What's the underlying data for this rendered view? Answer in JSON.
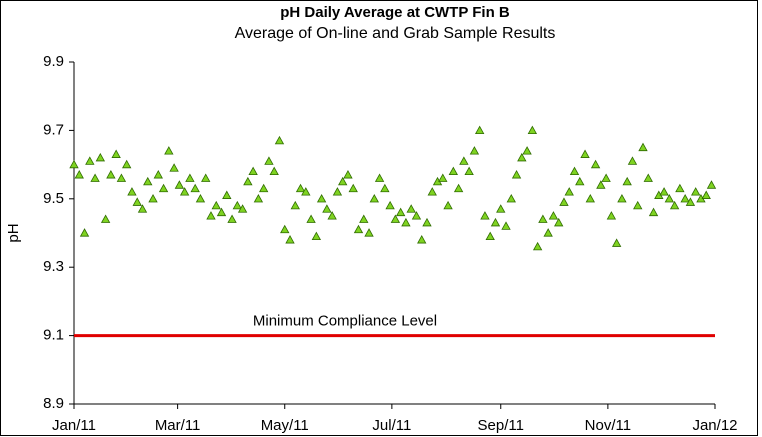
{
  "chart_data": {
    "type": "scatter",
    "title": "pH Daily Average at CWTP Fin B",
    "subtitle": "Average of On-line and Grab Sample Results",
    "y_label": "pH",
    "color": "#7fd321",
    "edge_color": "#2f6b00",
    "xlim": [
      0,
      365
    ],
    "xticks": [
      {
        "value": 0,
        "label": "Jan/11"
      },
      {
        "value": 59,
        "label": "Mar/11"
      },
      {
        "value": 120,
        "label": "May/11"
      },
      {
        "value": 181,
        "label": "Jul/11"
      },
      {
        "value": 243,
        "label": "Sep/11"
      },
      {
        "value": 304,
        "label": "Nov/11"
      },
      {
        "value": 365,
        "label": "Jan/12"
      }
    ],
    "ylim": [
      8.9,
      9.9
    ],
    "yticks": [
      8.9,
      9.1,
      9.3,
      9.5,
      9.7,
      9.9
    ],
    "reference_line": {
      "value": 9.1,
      "label": "Minimum Compliance Level",
      "color": "#e00000"
    },
    "x": [
      0,
      3,
      6,
      9,
      12,
      15,
      18,
      21,
      24,
      27,
      30,
      33,
      36,
      39,
      42,
      45,
      48,
      51,
      54,
      57,
      60,
      63,
      66,
      69,
      72,
      75,
      78,
      81,
      84,
      87,
      90,
      93,
      96,
      99,
      102,
      105,
      108,
      111,
      114,
      117,
      120,
      123,
      126,
      129,
      132,
      135,
      138,
      141,
      144,
      147,
      150,
      153,
      156,
      159,
      162,
      165,
      168,
      171,
      174,
      177,
      180,
      183,
      186,
      189,
      192,
      195,
      198,
      201,
      204,
      207,
      210,
      213,
      216,
      219,
      222,
      225,
      228,
      231,
      234,
      237,
      240,
      243,
      246,
      249,
      252,
      255,
      258,
      261,
      264,
      267,
      270,
      273,
      276,
      279,
      282,
      285,
      288,
      291,
      294,
      297,
      300,
      303,
      306,
      309,
      312,
      315,
      318,
      321,
      324,
      327,
      330,
      333,
      336,
      339,
      342,
      345,
      348,
      351,
      354,
      357,
      360,
      363
    ],
    "values": [
      9.6,
      9.57,
      9.4,
      9.61,
      9.56,
      9.62,
      9.44,
      9.57,
      9.63,
      9.56,
      9.6,
      9.52,
      9.49,
      9.47,
      9.55,
      9.5,
      9.57,
      9.53,
      9.64,
      9.59,
      9.54,
      9.52,
      9.56,
      9.53,
      9.5,
      9.56,
      9.45,
      9.48,
      9.46,
      9.51,
      9.44,
      9.48,
      9.47,
      9.55,
      9.58,
      9.5,
      9.53,
      9.61,
      9.58,
      9.67,
      9.41,
      9.38,
      9.48,
      9.53,
      9.52,
      9.44,
      9.39,
      9.5,
      9.47,
      9.45,
      9.52,
      9.55,
      9.57,
      9.53,
      9.41,
      9.44,
      9.4,
      9.5,
      9.56,
      9.53,
      9.48,
      9.44,
      9.46,
      9.43,
      9.47,
      9.45,
      9.38,
      9.43,
      9.52,
      9.55,
      9.56,
      9.48,
      9.58,
      9.53,
      9.61,
      9.58,
      9.64,
      9.7,
      9.45,
      9.39,
      9.43,
      9.47,
      9.42,
      9.5,
      9.57,
      9.62,
      9.64,
      9.7,
      9.36,
      9.44,
      9.4,
      9.45,
      9.43,
      9.49,
      9.52,
      9.58,
      9.55,
      9.63,
      9.5,
      9.6,
      9.54,
      9.56,
      9.45,
      9.37,
      9.5,
      9.55,
      9.61,
      9.48,
      9.65,
      9.56,
      9.46,
      9.51,
      9.52,
      9.5,
      9.48,
      9.53,
      9.5,
      9.49,
      9.52,
      9.5,
      9.51,
      9.54
    ]
  }
}
